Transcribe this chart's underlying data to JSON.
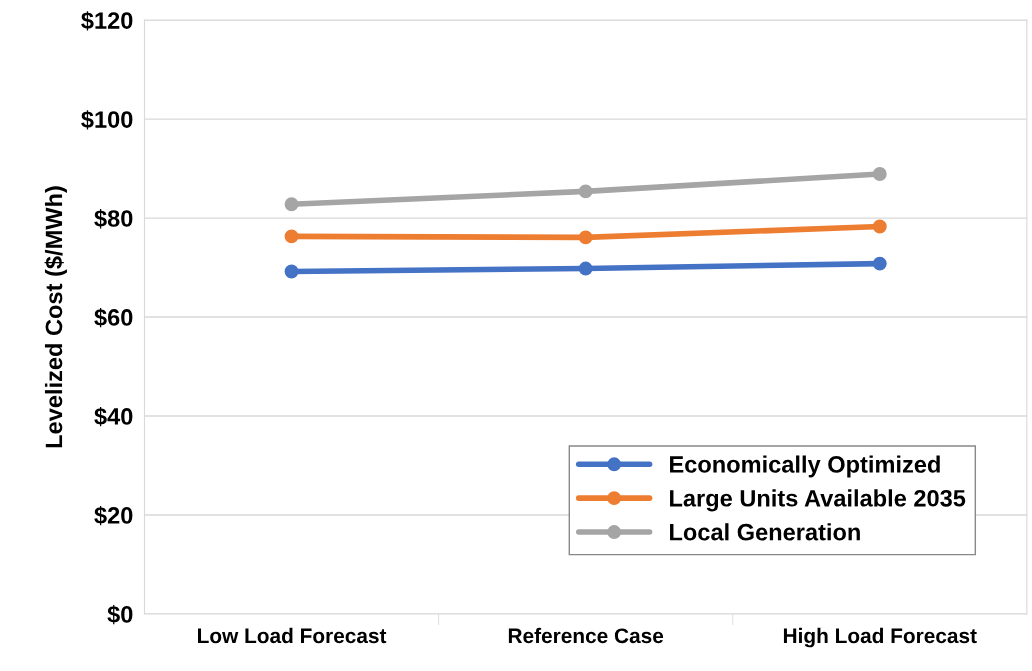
{
  "chart_data": {
    "type": "line",
    "ylabel": "Levelized Cost ($/MWh)",
    "categories": [
      "Low Load Forecast",
      "Reference Case",
      "High Load Forecast"
    ],
    "series": [
      {
        "name": "Economically Optimized",
        "color": "#4472c4",
        "values": [
          69.2,
          69.8,
          70.8
        ]
      },
      {
        "name": "Large Units Available 2035",
        "color": "#ed7d31",
        "values": [
          76.3,
          76.1,
          78.3
        ]
      },
      {
        "name": "Local Generation",
        "color": "#a5a5a5",
        "values": [
          82.8,
          85.4,
          88.9
        ]
      }
    ],
    "ylim": [
      0,
      120
    ],
    "yticks": [
      {
        "value": 0,
        "label": "$0"
      },
      {
        "value": 20,
        "label": "$20"
      },
      {
        "value": 40,
        "label": "$40"
      },
      {
        "value": 60,
        "label": "$60"
      },
      {
        "value": 80,
        "label": "$80"
      },
      {
        "value": 100,
        "label": "$100"
      },
      {
        "value": 120,
        "label": "$120"
      }
    ],
    "grid": "y",
    "legend": "bottom right",
    "marker": "circle",
    "line_style": "solid"
  }
}
